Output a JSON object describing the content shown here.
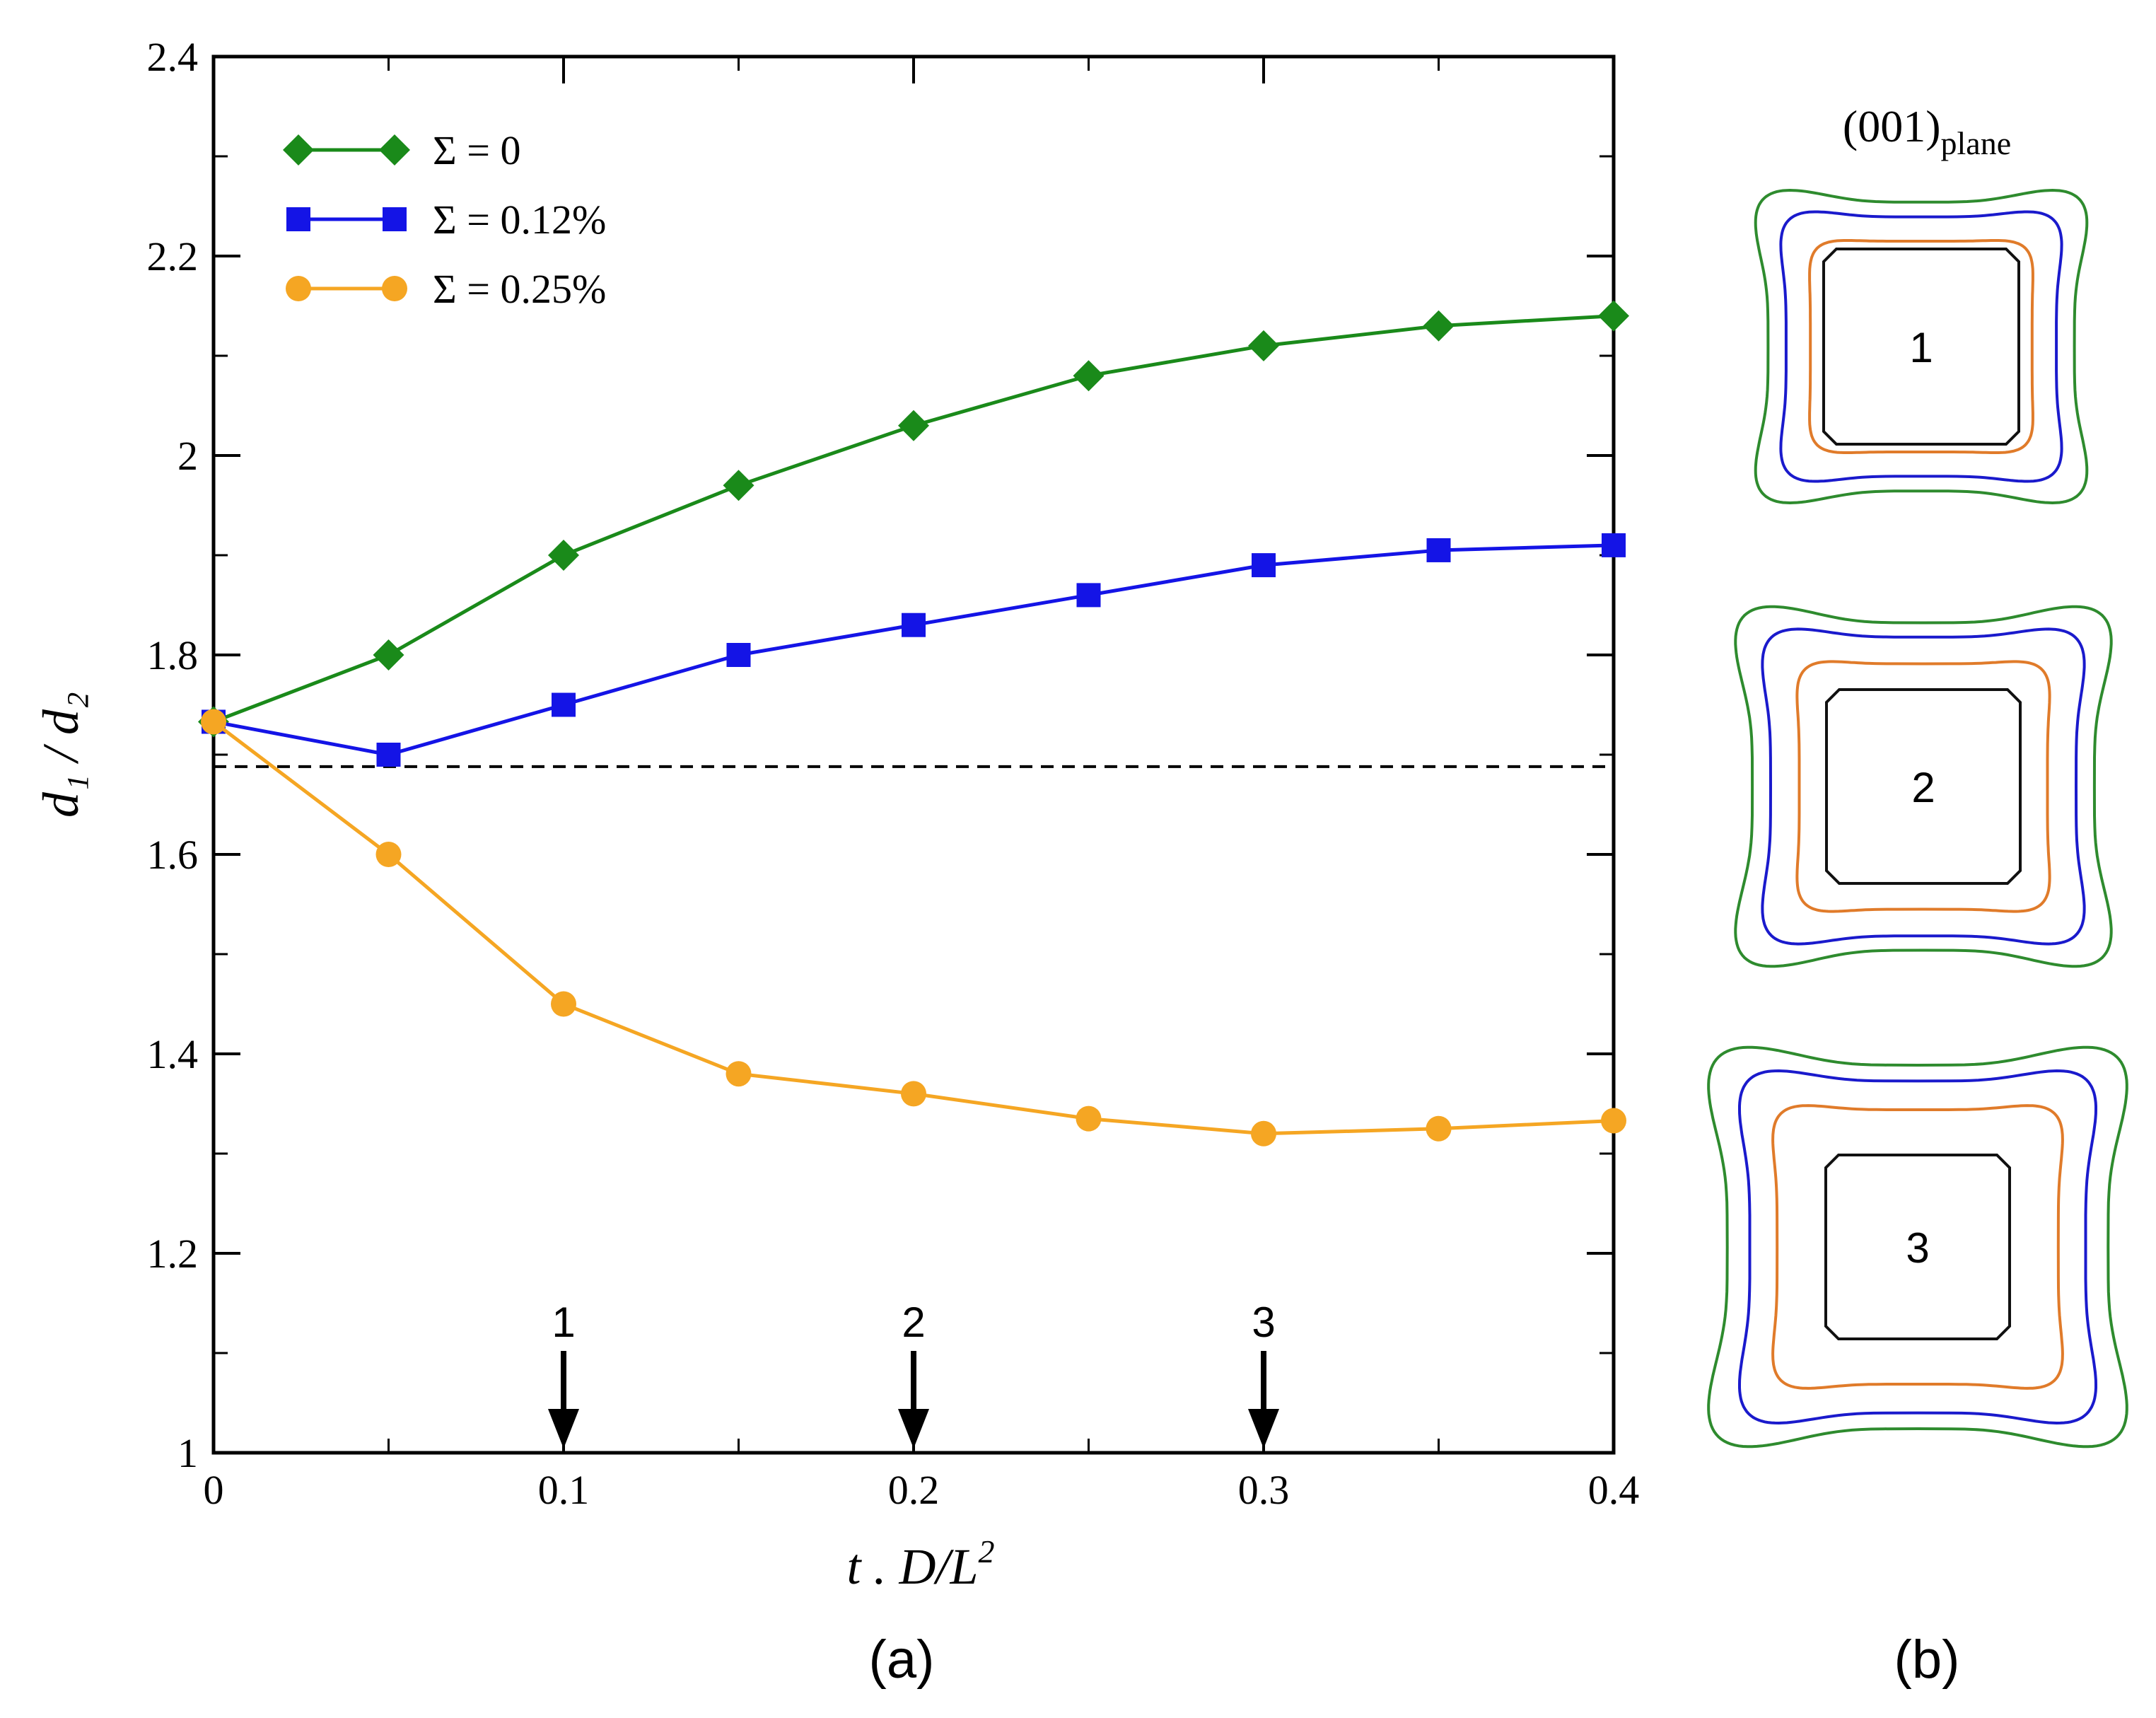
{
  "chart_data": {
    "type": "line",
    "x": [
      0,
      0.05,
      0.1,
      0.15,
      0.2,
      0.25,
      0.3,
      0.35,
      0.4
    ],
    "xlim": [
      0,
      0.4
    ],
    "ylim": [
      1,
      2.4
    ],
    "x_ticks": [
      0,
      0.1,
      0.2,
      0.3,
      0.4
    ],
    "x_tick_labels": [
      "0",
      "0.1",
      "0.2",
      "0.3",
      "0.4"
    ],
    "y_ticks": [
      1,
      1.2,
      1.4,
      1.6,
      1.8,
      2,
      2.2,
      2.4
    ],
    "y_tick_labels": [
      "1",
      "1.2",
      "1.4",
      "1.6",
      "1.8",
      "2",
      "2.2",
      "2.4"
    ],
    "xlabel": "t . D/L",
    "xlabel_sup": "2",
    "ylabel": "d₁ / d₂",
    "legend_position": "top-left",
    "series": [
      {
        "name": "Σ = 0",
        "color": "#1a8a1a",
        "marker": "diamond",
        "values": [
          1.733,
          1.8,
          1.9,
          1.97,
          2.03,
          2.08,
          2.11,
          2.13,
          2.14
        ]
      },
      {
        "name": "Σ = 0.12%",
        "color": "#1414e6",
        "marker": "square",
        "values": [
          1.733,
          1.7,
          1.75,
          1.8,
          1.83,
          1.86,
          1.89,
          1.905,
          1.91
        ]
      },
      {
        "name": "Σ = 0.25%",
        "color": "#f5a623",
        "marker": "circle",
        "values": [
          1.733,
          1.6,
          1.45,
          1.38,
          1.36,
          1.335,
          1.32,
          1.325,
          1.333
        ]
      }
    ],
    "reference_line": {
      "y": 1.688,
      "style": "dashed"
    },
    "annotations": [
      {
        "label": "1",
        "x": 0.1
      },
      {
        "label": "2",
        "x": 0.2
      },
      {
        "label": "3",
        "x": 0.3
      }
    ]
  },
  "panel_a_label": "(a)",
  "panel_b_label": "(b)",
  "plane_label": "(001)",
  "plane_label_sub": "plane",
  "contour_labels": [
    "1",
    "2",
    "3"
  ],
  "contour_colors": {
    "outer": "#2e8b2e",
    "middle": "#1a1acc",
    "inner": "#e07b2a",
    "core": "#111111"
  }
}
